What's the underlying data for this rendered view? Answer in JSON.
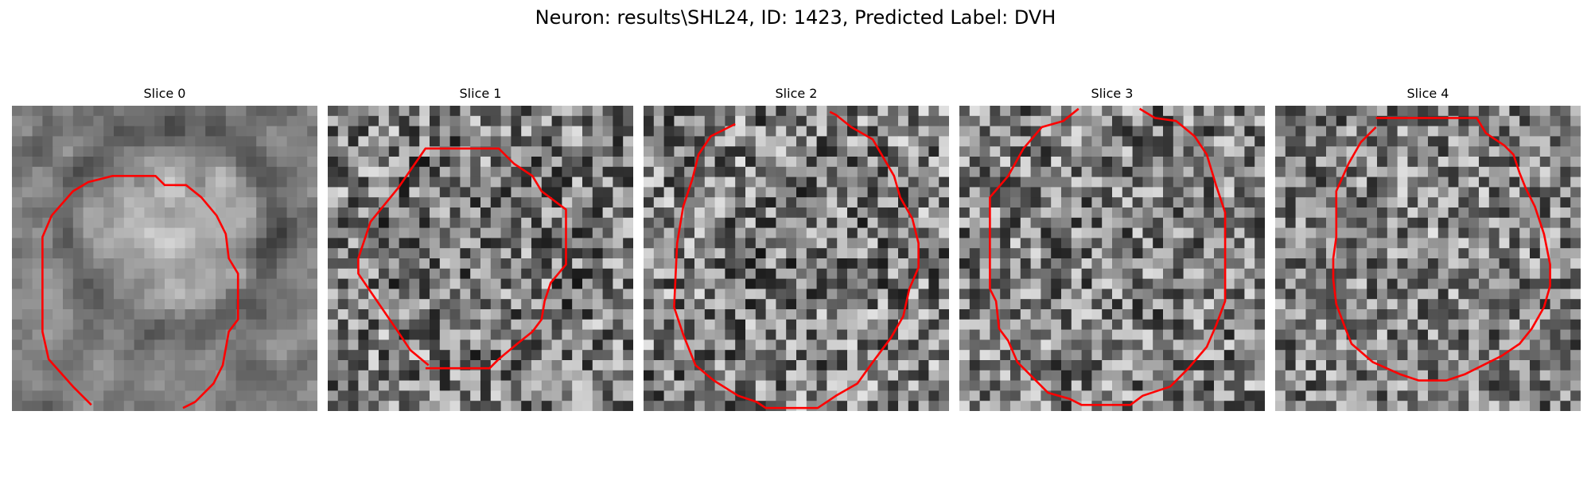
{
  "figure": {
    "title": "Neuron: results\\SHL24, ID: 1423, Predicted Label: DVH"
  },
  "colors": {
    "contour": "#ff0000",
    "background": "#ffffff"
  },
  "slices": [
    {
      "label": "Slice 0"
    },
    {
      "label": "Slice 1"
    },
    {
      "label": "Slice 2"
    },
    {
      "label": "Slice 3"
    },
    {
      "label": "Slice 4"
    }
  ]
}
